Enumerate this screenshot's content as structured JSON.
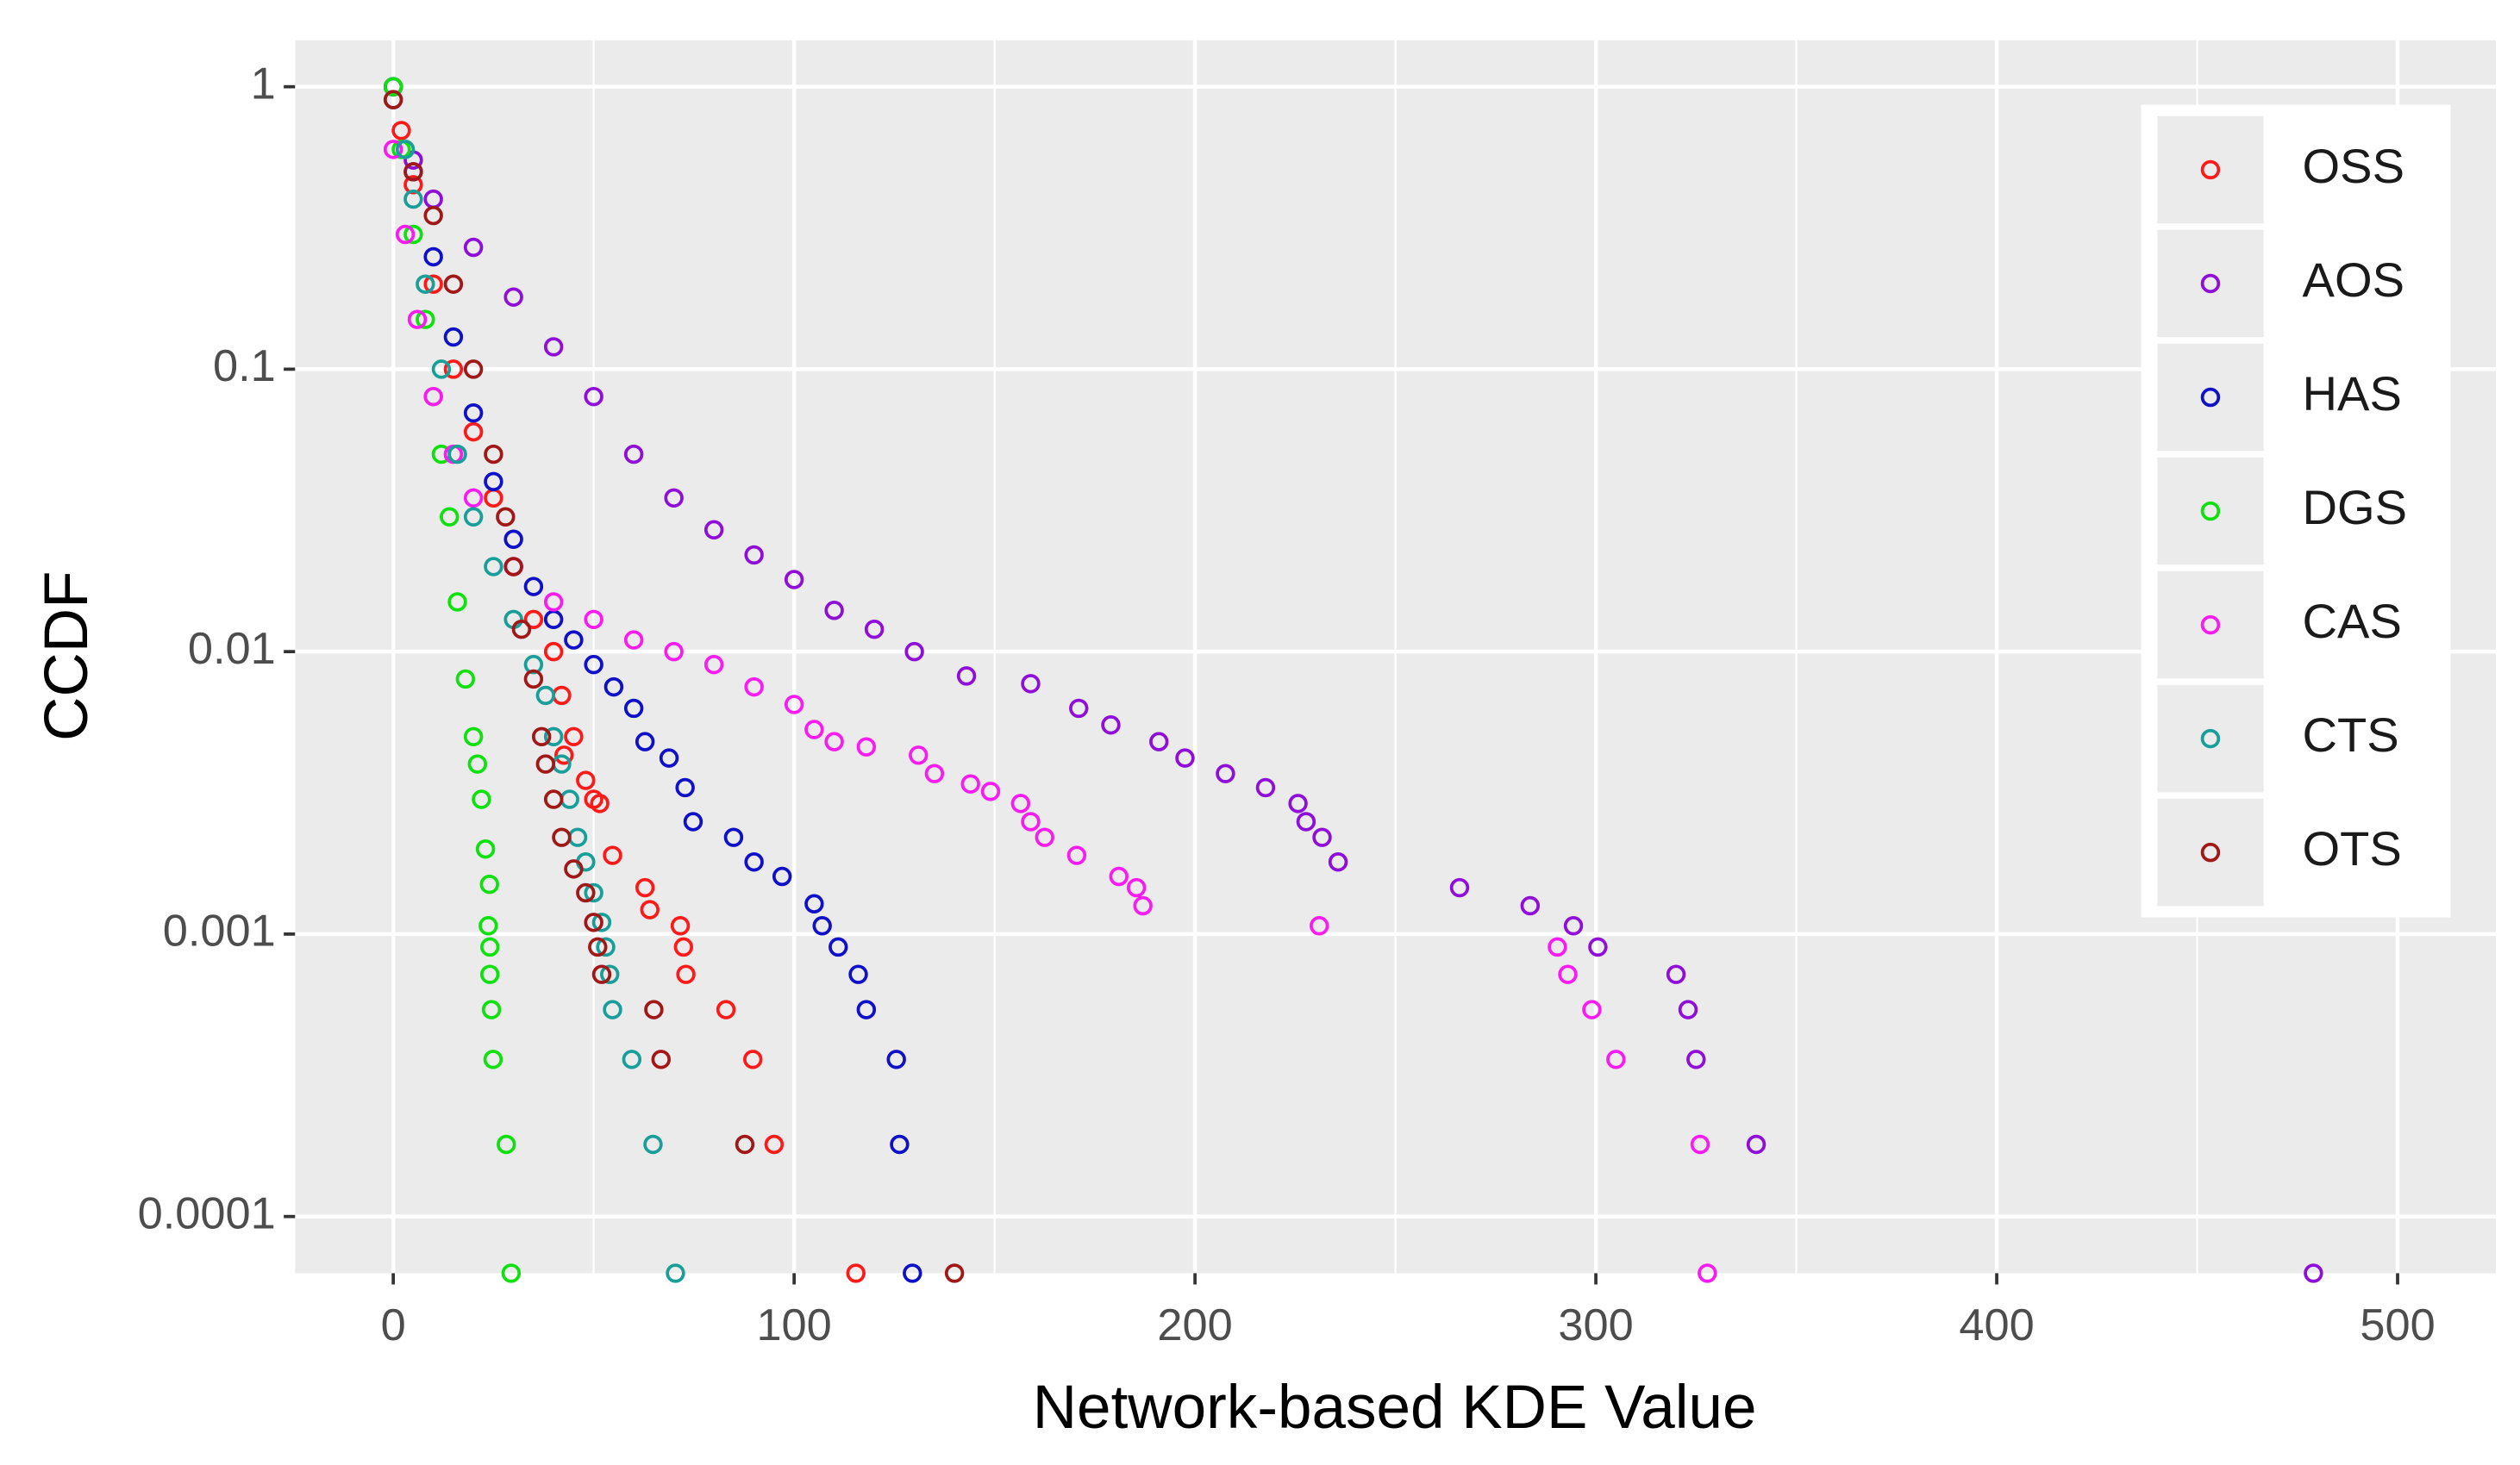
{
  "chart_data": {
    "type": "scatter",
    "x_label": "Network-based KDE Value",
    "y_label": "CCDF",
    "xlim": [
      -24.5,
      524.5
    ],
    "xticks": [
      0,
      100,
      200,
      300,
      400,
      500
    ],
    "xminor": [
      50,
      150,
      250,
      350,
      450
    ],
    "ylim": [
      6.3e-05,
      1.46
    ],
    "yticks": [
      1,
      0.1,
      0.01,
      0.001,
      0.0001
    ],
    "log_y": true,
    "grid": true,
    "legend": "right",
    "series": [
      {
        "name": "OSS",
        "color": "#ff1a1a",
        "x": [
          0,
          2,
          5,
          10,
          15,
          20,
          25,
          30,
          35,
          40,
          42,
          45,
          48,
          50,
          42.6,
          51.5,
          54.7,
          62.8,
          64,
          71.6,
          72.4,
          73,
          83,
          89.7,
          95,
          115.4
        ],
        "values": [
          1,
          0.7,
          0.45,
          0.2,
          0.1,
          0.06,
          0.035,
          0.02,
          0.013,
          0.01,
          0.007,
          0.005,
          0.0035,
          0.003,
          0.0043,
          0.0029,
          0.0019,
          0.00146,
          0.00122,
          0.00107,
          0.0009,
          0.00072,
          0.00054,
          0.00036,
          0.00018,
          6.3e-05
        ]
      },
      {
        "name": "AOS",
        "color": "#8f0fd8",
        "x": [
          0,
          5,
          10,
          20,
          30,
          40,
          50,
          60,
          70,
          80,
          90,
          100,
          110,
          120,
          130,
          143,
          159,
          171,
          179,
          191,
          197.5,
          207.6,
          217.6,
          225.7,
          227.7,
          231.7,
          235.7,
          266,
          283.6,
          294.4,
          300.5,
          320,
          323,
          325,
          340,
          479
        ],
        "values": [
          1,
          0.55,
          0.4,
          0.27,
          0.18,
          0.12,
          0.08,
          0.05,
          0.035,
          0.027,
          0.022,
          0.018,
          0.014,
          0.012,
          0.01,
          0.0082,
          0.0077,
          0.0063,
          0.0055,
          0.0048,
          0.0042,
          0.0037,
          0.0033,
          0.0029,
          0.0025,
          0.0022,
          0.0018,
          0.00146,
          0.00126,
          0.00107,
          0.0009,
          0.00072,
          0.00054,
          0.00036,
          0.00018,
          6.3e-05
        ]
      },
      {
        "name": "HAS",
        "color": "#1010c8",
        "x": [
          0,
          5,
          10,
          15,
          20,
          25,
          30,
          35,
          40,
          45,
          50,
          55,
          60,
          62.8,
          68.8,
          72.8,
          74.8,
          84.9,
          90,
          97,
          105,
          107,
          111,
          116,
          118,
          125.5,
          126.3,
          129.5
        ],
        "values": [
          1,
          0.5,
          0.25,
          0.13,
          0.07,
          0.04,
          0.025,
          0.017,
          0.013,
          0.011,
          0.009,
          0.0075,
          0.0063,
          0.0048,
          0.0042,
          0.0033,
          0.0025,
          0.0022,
          0.0018,
          0.0016,
          0.00128,
          0.00107,
          0.0009,
          0.00072,
          0.00054,
          0.00036,
          0.00018,
          6.3e-05
        ]
      },
      {
        "name": "DGS",
        "color": "#10e010",
        "x": [
          0,
          2,
          5,
          8,
          10,
          12,
          14,
          16,
          18,
          20,
          21,
          22,
          23,
          24,
          23.7,
          24.1,
          24.1,
          24.5,
          24.9,
          28.2,
          29.4
        ],
        "values": [
          1,
          0.6,
          0.3,
          0.15,
          0.08,
          0.05,
          0.03,
          0.015,
          0.008,
          0.005,
          0.004,
          0.003,
          0.002,
          0.0015,
          0.00107,
          0.0009,
          0.00072,
          0.00054,
          0.00036,
          0.00018,
          6.3e-05
        ]
      },
      {
        "name": "CAS",
        "color": "#f81cf0",
        "x": [
          0,
          3,
          6,
          10,
          15,
          20,
          30,
          40,
          50,
          60,
          70,
          80,
          90,
          100,
          105,
          110,
          118,
          131,
          135,
          144,
          149,
          156.5,
          159,
          162.5,
          170.5,
          181,
          185.4,
          187,
          231,
          290.4,
          293,
          299,
          305,
          326,
          327.8
        ],
        "values": [
          0.6,
          0.3,
          0.15,
          0.08,
          0.05,
          0.035,
          0.02,
          0.015,
          0.013,
          0.011,
          0.01,
          0.009,
          0.0075,
          0.0065,
          0.0053,
          0.0048,
          0.0046,
          0.0043,
          0.0037,
          0.0034,
          0.0032,
          0.0029,
          0.0025,
          0.0022,
          0.0019,
          0.0016,
          0.00146,
          0.00126,
          0.00107,
          0.0009,
          0.00072,
          0.00054,
          0.00036,
          0.00018,
          6.3e-05
        ]
      },
      {
        "name": "CTS",
        "color": "#1a9e9a",
        "x": [
          0,
          3,
          5,
          8,
          12,
          16,
          20,
          25,
          30,
          35,
          38,
          40,
          42,
          44,
          46,
          48,
          50,
          52,
          53,
          54,
          54.7,
          59.5,
          64.8,
          70.4
        ],
        "values": [
          0.9,
          0.6,
          0.4,
          0.2,
          0.1,
          0.05,
          0.03,
          0.02,
          0.013,
          0.009,
          0.007,
          0.005,
          0.004,
          0.003,
          0.0022,
          0.0018,
          0.0014,
          0.0011,
          0.0009,
          0.00072,
          0.00054,
          0.00036,
          0.00018,
          6.3e-05
        ]
      },
      {
        "name": "OTS",
        "color": "#a01818",
        "x": [
          0,
          5,
          10,
          15,
          20,
          25,
          28,
          30,
          32,
          35,
          37,
          38,
          40,
          42,
          45,
          48,
          50,
          51,
          52,
          65,
          66.8,
          87.7,
          140
        ],
        "values": [
          0.9,
          0.5,
          0.35,
          0.2,
          0.1,
          0.05,
          0.03,
          0.02,
          0.012,
          0.008,
          0.005,
          0.004,
          0.003,
          0.0022,
          0.0017,
          0.0014,
          0.0011,
          0.0009,
          0.00072,
          0.00054,
          0.00036,
          0.00018,
          6.3e-05
        ]
      }
    ]
  }
}
